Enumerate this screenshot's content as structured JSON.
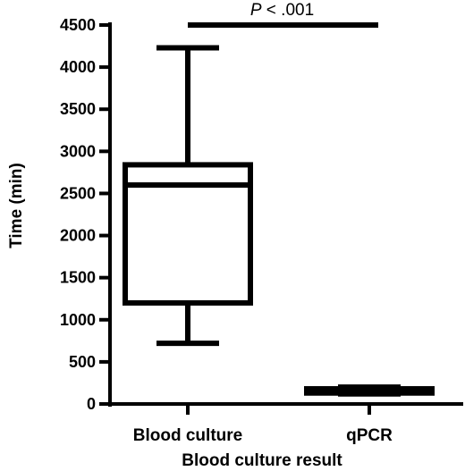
{
  "chart_data": {
    "type": "box",
    "categories": [
      "Blood culture",
      "qPCR"
    ],
    "boxes": [
      {
        "name": "Blood culture",
        "min": 720,
        "q1": 1200,
        "median": 2600,
        "q3": 2840,
        "max": 4230
      },
      {
        "name": "qPCR",
        "min": 120,
        "q1": 130,
        "median": 150,
        "q3": 180,
        "max": 200
      }
    ],
    "xlabel": "Blood culture result",
    "ylabel": "Time (min)",
    "ylim": [
      0,
      4500
    ],
    "yticks": [
      0,
      500,
      1000,
      1500,
      2000,
      2500,
      3000,
      3500,
      4000,
      4500
    ],
    "significance": {
      "p_italic": "P",
      "p_rest": " < .001",
      "between": [
        "Blood culture",
        "qPCR"
      ],
      "level": 4500
    },
    "grid": false,
    "color": "#000000"
  }
}
